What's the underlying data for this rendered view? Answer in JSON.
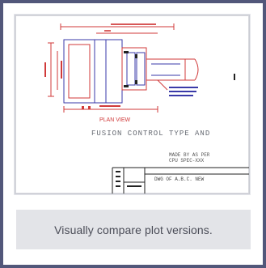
{
  "thumbnail": {
    "title_text": "FUSION CONTROL TYPE AND",
    "note_text": "PLAN VIEW",
    "table_row_1": "MADE BY AS PER",
    "table_row_2": "CPU SPEC-XXX",
    "table_row_3": "DWG OF A.B.C. NEW"
  },
  "caption": {
    "text": "Visually compare plot versions."
  },
  "colors": {
    "card_border": "#52577a",
    "caption_bg": "#e3e4e8",
    "drawing_red": "#d03a3a",
    "drawing_blue": "#3a3aa8",
    "drawing_black": "#222222"
  }
}
